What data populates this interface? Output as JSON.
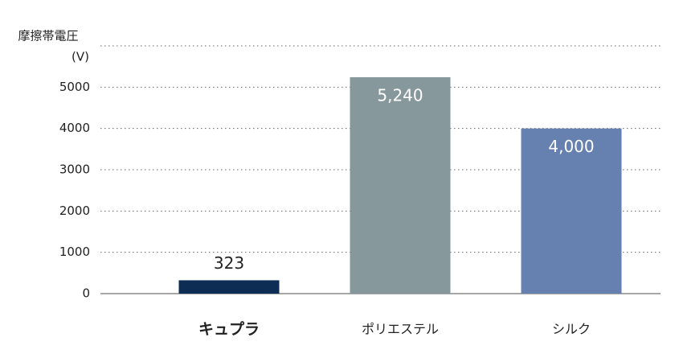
{
  "chart_data": {
    "type": "bar",
    "y_label": "摩擦帯電圧",
    "y_unit": "(V)",
    "categories": [
      "キュプラ",
      "ポリエステル",
      "シルク"
    ],
    "values": [
      323,
      5240,
      4000
    ],
    "value_labels": [
      "323",
      "5,240",
      "4,000"
    ],
    "colors": [
      "#0d2d55",
      "#87989c",
      "#6680b0"
    ],
    "ylim": [
      0,
      6000
    ],
    "yticks": [
      0,
      1000,
      2000,
      3000,
      4000,
      5000
    ],
    "grid": true
  }
}
